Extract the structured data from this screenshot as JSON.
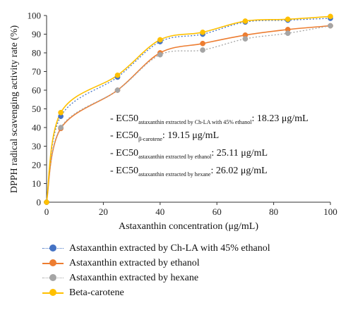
{
  "chart_data": {
    "type": "line",
    "title": "",
    "xlabel": "Astaxanthin concentration (μg/mL)",
    "ylabel": "DPPH radical scavenging activity rate (%)",
    "xlim": [
      0,
      100
    ],
    "ylim": [
      0,
      100
    ],
    "x_ticks": [
      0,
      20,
      40,
      60,
      80,
      100
    ],
    "y_ticks": [
      0,
      10,
      20,
      30,
      40,
      50,
      60,
      70,
      80,
      90,
      100
    ],
    "grid": false,
    "legend_position": "bottom",
    "x": [
      0,
      5,
      25,
      40,
      55,
      70,
      85,
      100
    ],
    "series": [
      {
        "name": "Astaxanthin extracted by Ch-LA with 45% ethanol",
        "color": "#4472C4",
        "line_style": "dotted",
        "values": [
          0,
          46,
          67,
          86,
          90,
          96.5,
          97.5,
          98.5
        ]
      },
      {
        "name": "Astaxanthin extracted by ethanol",
        "color": "#ED7D31",
        "line_style": "solid",
        "values": [
          0,
          39.5,
          60,
          80,
          85,
          89.5,
          92.5,
          94.5
        ]
      },
      {
        "name": "Astaxanthin extracted by hexane",
        "color": "#A5A5A5",
        "line_style": "dotted",
        "values": [
          0,
          40,
          60,
          79,
          81.5,
          87.5,
          90.5,
          94.5
        ]
      },
      {
        "name": "Beta-carotene",
        "color": "#FFC000",
        "line_style": "solid",
        "values": [
          0,
          48,
          68,
          87,
          91,
          97,
          98,
          99.5
        ]
      }
    ],
    "annotations": [
      {
        "prefix": "- EC50",
        "sub": "astaxanthin extracted by Ch-LA with 45% ethanol",
        "text": ": 18.23 μg/mL"
      },
      {
        "prefix": "- EC50",
        "sub": "β-carotene",
        "text": ": 19.15 μg/mL"
      },
      {
        "prefix": "- EC50",
        "sub": "astaxanthin extracted by ethanol",
        "text": ": 25.11 μg/mL"
      },
      {
        "prefix": "- EC50",
        "sub": "astaxanthin extracted by hexane",
        "text": ": 26.02 μg/mL"
      }
    ]
  }
}
